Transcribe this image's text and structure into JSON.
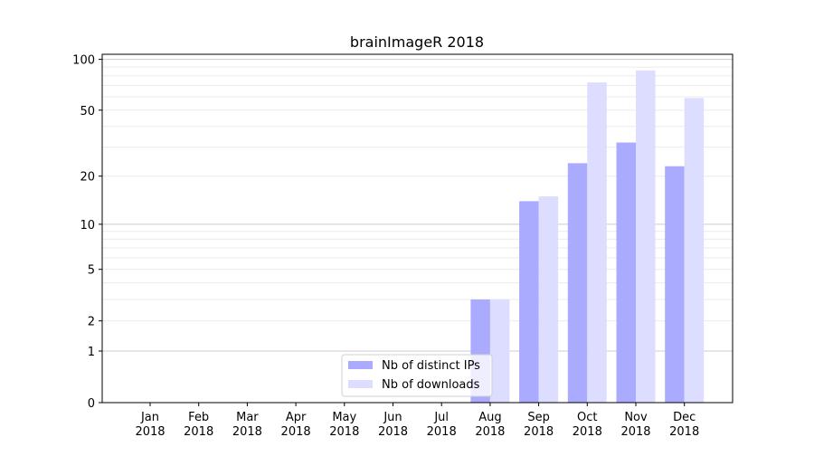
{
  "chart_data": {
    "type": "bar",
    "title": "brainImageR 2018",
    "xlabel": "",
    "ylabel": "",
    "yscale": "log(y+1)",
    "ylim": [
      0,
      110
    ],
    "yticks": [
      0,
      1,
      2,
      5,
      10,
      20,
      50,
      100
    ],
    "categories": [
      "Jan\n2018",
      "Feb\n2018",
      "Mar\n2018",
      "Apr\n2018",
      "May\n2018",
      "Jun\n2018",
      "Jul\n2018",
      "Aug\n2018",
      "Sep\n2018",
      "Oct\n2018",
      "Nov\n2018",
      "Dec\n2018"
    ],
    "series": [
      {
        "name": "Nb of distinct IPs",
        "color": "#aaaaff",
        "values": [
          0,
          0,
          0,
          0,
          0,
          0,
          0,
          3,
          14,
          24,
          32,
          23
        ]
      },
      {
        "name": "Nb of downloads",
        "color": "#ddddff",
        "values": [
          0,
          0,
          0,
          0,
          0,
          0,
          0,
          3,
          15,
          73,
          86,
          59
        ]
      }
    ],
    "grid": true,
    "legend": "bottom-center"
  }
}
